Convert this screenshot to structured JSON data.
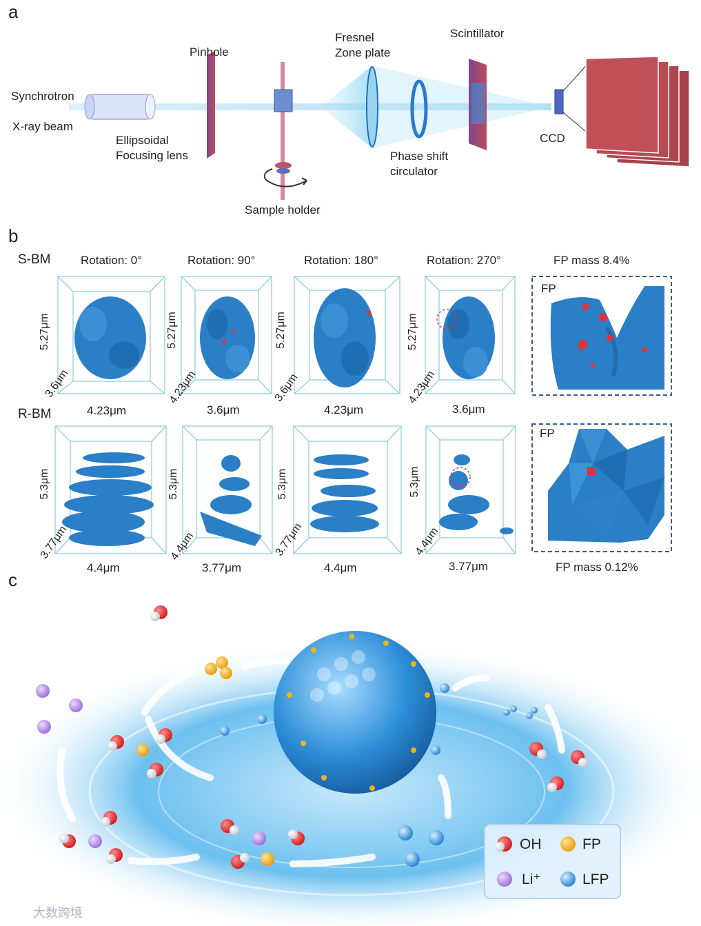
{
  "panels": {
    "a": {
      "letter": "a",
      "labels": {
        "synchrotron": "Synchrotron",
        "xray_beam": "X-ray beam",
        "ellipsoidal": "Ellipsoidal",
        "focusing_lens": "Focusing lens",
        "pinhole": "Pinhole",
        "sample_holder": "Sample holder",
        "fresnel": "Fresnel",
        "zone_plate": "Zone plate",
        "phase_shift": "Phase shift",
        "circulator": "circulator",
        "scintillator": "Scintillator",
        "ccd": "CCD"
      }
    },
    "b": {
      "letter": "b",
      "sbm": {
        "row_label": "S-BM",
        "rotations": [
          "Rotation: 0°",
          "Rotation: 90°",
          "Rotation: 180°",
          "Rotation: 270°"
        ],
        "fp_mass_title": "FP mass 8.4%",
        "fp_tag": "FP",
        "heights": [
          "5.27μm",
          "5.27μm",
          "5.27μm",
          "5.27μm"
        ],
        "depths": [
          "3.6μm",
          "4.23μm",
          "3.6μm",
          "4.23μm"
        ],
        "widths": [
          "4.23μm",
          "3.6μm",
          "4.23μm",
          "3.6μm"
        ]
      },
      "rbm": {
        "row_label": "R-BM",
        "fp_tag": "FP",
        "fp_mass_title": "FP mass 0.12%",
        "heights": [
          "5.3μm",
          "5.3μm",
          "5.3μm",
          "5.3μm"
        ],
        "depths": [
          "3.77μm",
          "4.4μm",
          "3.77μm",
          "4.4μm"
        ],
        "widths": [
          "4.4μm",
          "3.77μm",
          "4.4μm",
          "3.77μm"
        ]
      }
    },
    "c": {
      "letter": "c",
      "legend": {
        "oh": "OH",
        "fp": "FP",
        "li": "Li⁺",
        "lfp": "LFP"
      }
    }
  },
  "watermark": "大数跨境",
  "colors": {
    "particle_blue": "#2a7fc6",
    "fp_red": "#e0323a",
    "oh_red": "#e02626",
    "fp_gold": "#f0b21a",
    "li_purple": "#b58ce0",
    "lfp_blue": "#3a9be0",
    "frame_cyan": "#7fc4dd",
    "dash_navy": "#3a5a8a"
  }
}
